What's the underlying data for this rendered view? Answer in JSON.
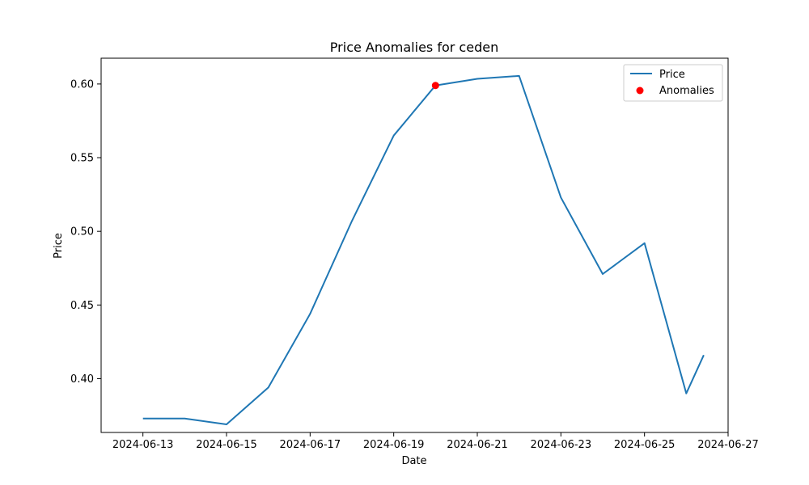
{
  "chart_data": {
    "type": "line",
    "title": "Price Anomalies for ceden",
    "xlabel": "Date",
    "ylabel": "Price",
    "xlim": [
      "2024-06-12T00:00",
      "2024-06-27T00:00"
    ],
    "ylim": [
      0.3635,
      0.6175
    ],
    "x_ticks": [
      "2024-06-13",
      "2024-06-15",
      "2024-06-17",
      "2024-06-19",
      "2024-06-21",
      "2024-06-23",
      "2024-06-25",
      "2024-06-27"
    ],
    "y_ticks": [
      0.4,
      0.45,
      0.5,
      0.55,
      0.6
    ],
    "y_tick_labels": [
      "0.40",
      "0.45",
      "0.50",
      "0.55",
      "0.60"
    ],
    "grid": false,
    "legend_position": "top-right",
    "series": [
      {
        "name": "Price",
        "kind": "line",
        "color": "#1f77b4",
        "x": [
          "2024-06-13",
          "2024-06-14",
          "2024-06-15",
          "2024-06-16",
          "2024-06-17",
          "2024-06-18",
          "2024-06-19",
          "2024-06-20",
          "2024-06-21",
          "2024-06-22",
          "2024-06-23",
          "2024-06-24",
          "2024-06-25",
          "2024-06-26",
          "2024-06-26T10:00"
        ],
        "y": [
          0.373,
          0.373,
          0.369,
          0.394,
          0.444,
          0.507,
          0.565,
          0.599,
          0.6035,
          0.6055,
          0.523,
          0.471,
          0.492,
          0.39,
          0.416
        ]
      },
      {
        "name": "Anomalies",
        "kind": "scatter",
        "color": "#ff0000",
        "x": [
          "2024-06-20"
        ],
        "y": [
          0.599
        ]
      }
    ]
  }
}
